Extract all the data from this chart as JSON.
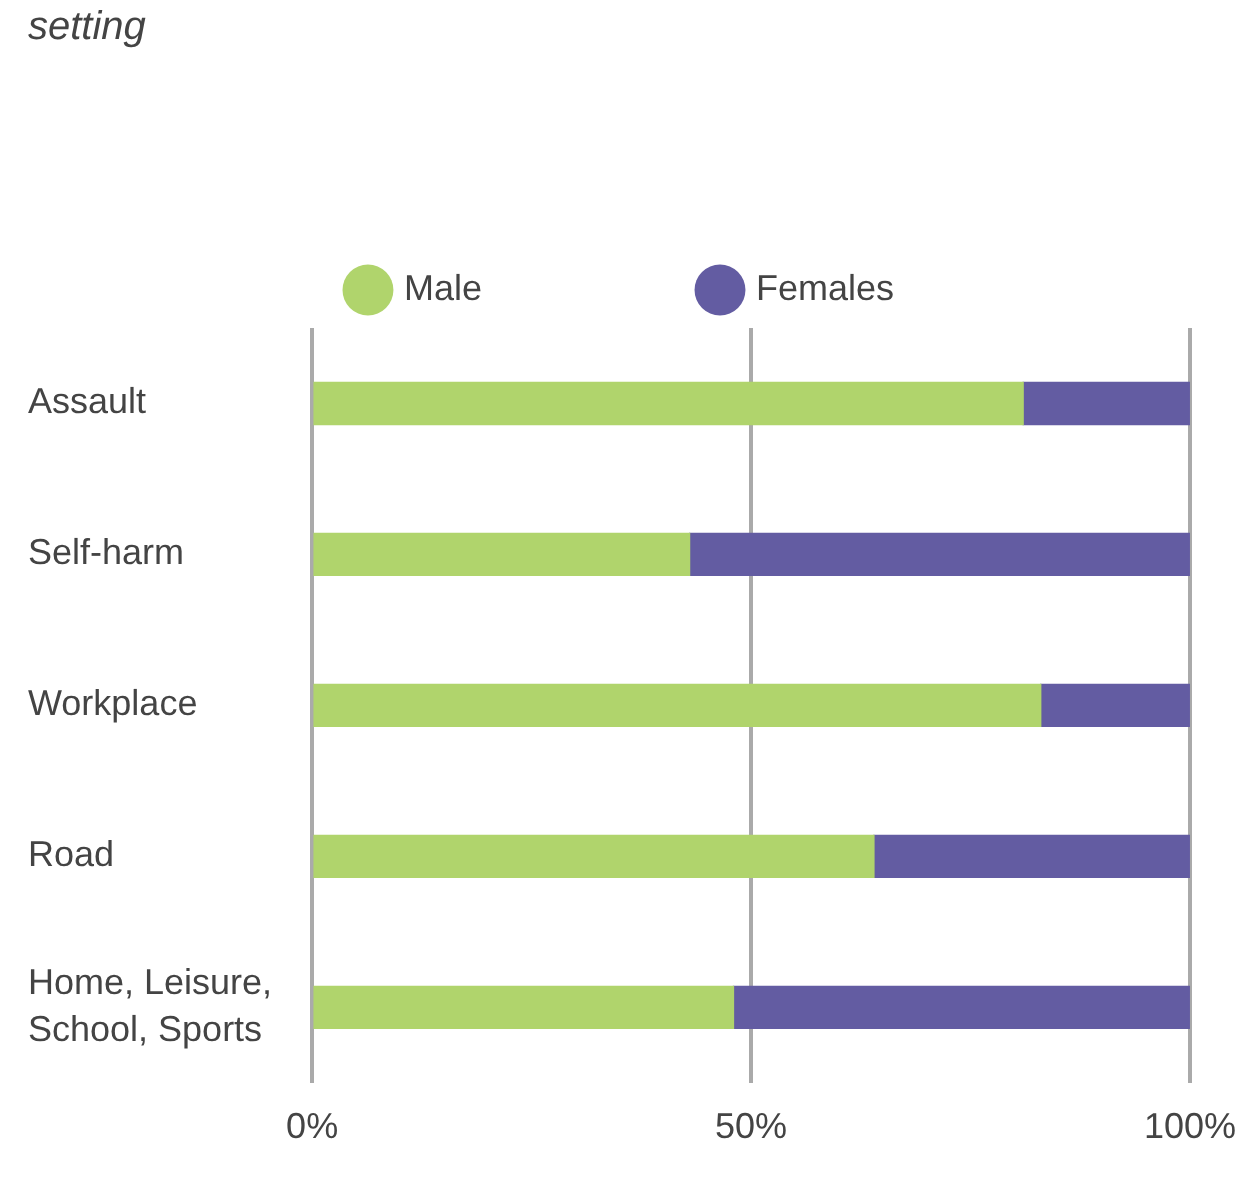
{
  "chart_data": {
    "type": "bar",
    "orientation": "horizontal",
    "stacked": true,
    "title": "setting",
    "categories": [
      "Assault",
      "Self-harm",
      "Workplace",
      "Road",
      "Home, Leisure, School, Sports"
    ],
    "series": [
      {
        "name": "Male",
        "color": "#b0d46c",
        "values": [
          81,
          43,
          83,
          64,
          48
        ]
      },
      {
        "name": "Females",
        "color": "#635ca2",
        "values": [
          19,
          57,
          17,
          36,
          52
        ]
      }
    ],
    "xlim": [
      0,
      100
    ],
    "xticks": [
      {
        "value": 0,
        "label": "0%"
      },
      {
        "value": 50,
        "label": "50%"
      },
      {
        "value": 100,
        "label": "100%"
      }
    ],
    "grid": "x",
    "legend": "top"
  }
}
